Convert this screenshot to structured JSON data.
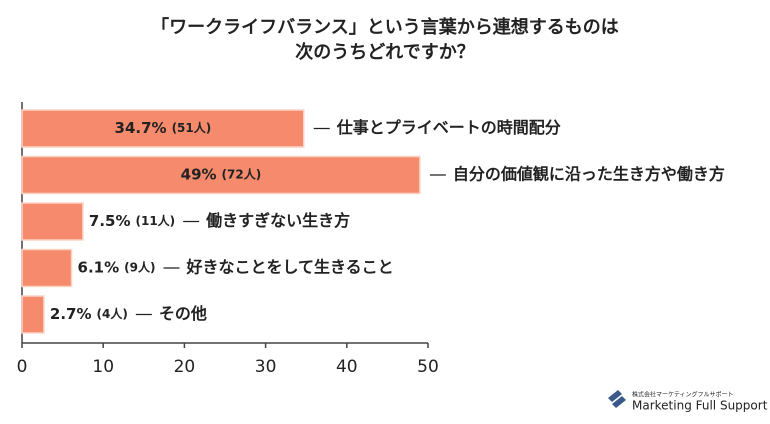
{
  "chart_data": {
    "type": "hbar",
    "title_lines": [
      "「ワークライフバランス」という言葉から連想するものは",
      "次のうちどれですか？"
    ],
    "categories": [
      "仕事とプライベートの時間配分",
      "自分の価値観に沿った生き方や働き方",
      "働きすぎない生き方",
      "好きなことをして生きること",
      "その他"
    ],
    "values": [
      34.7,
      49,
      7.5,
      6.1,
      2.7
    ],
    "value_labels": [
      "34.7%",
      "49%",
      "7.5%",
      "6.1%",
      "2.7%"
    ],
    "count_labels": [
      "(51人)",
      "(72人)",
      "(11人)",
      "(9人)",
      "(4人)"
    ],
    "color": "#f58b6c",
    "xlim": [
      0,
      50
    ],
    "xticks": [
      0,
      10,
      20,
      30,
      40,
      50
    ],
    "grid": false
  },
  "logo": {
    "company": "株式会社マーケティングフルサポート",
    "name": "Marketing Full Support"
  }
}
